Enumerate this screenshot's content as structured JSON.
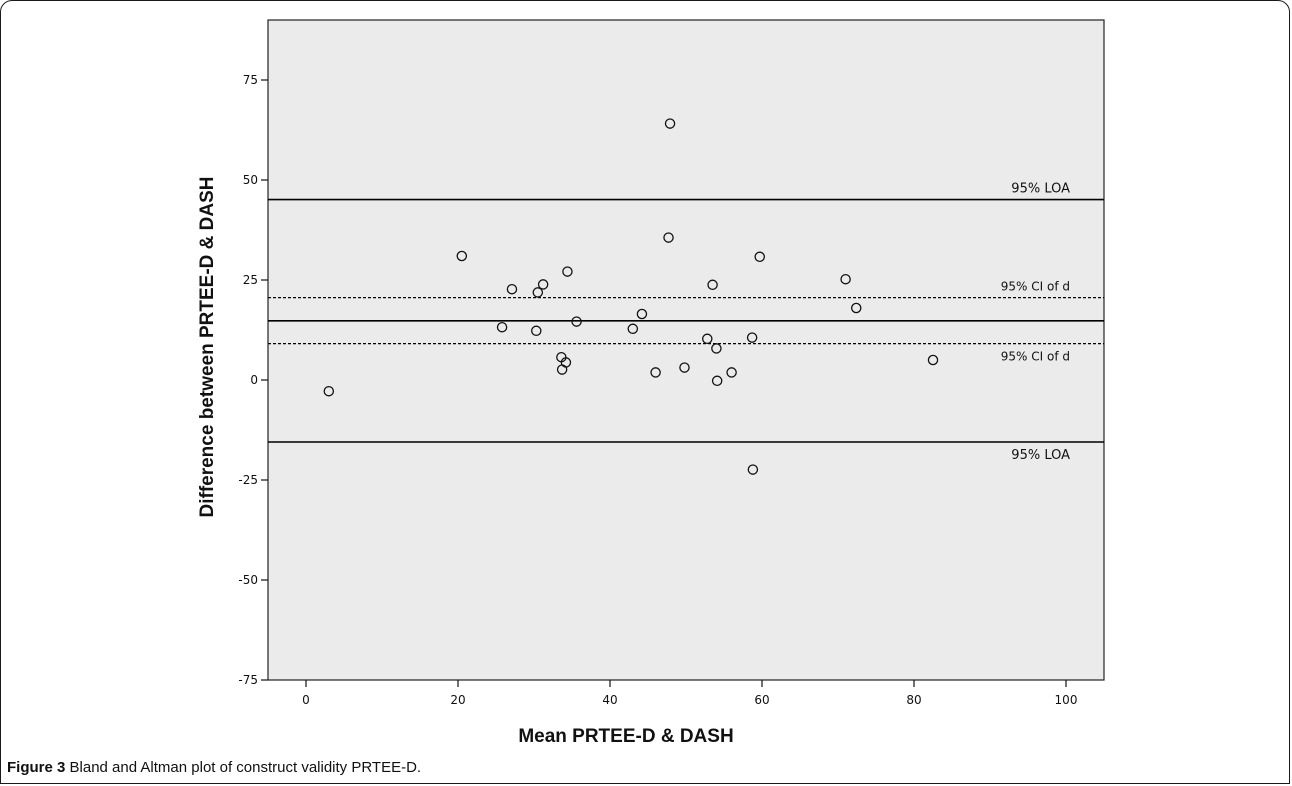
{
  "caption": {
    "label": "Figure 3",
    "text": " Bland and Altman plot of construct validity PRTEE-D."
  },
  "chart_data": {
    "type": "scatter",
    "xlabel": "Mean PRTEE-D & DASH",
    "ylabel": "Difference between PRTEE-D & DASH",
    "xlim": [
      -5,
      105
    ],
    "ylim": [
      -75,
      90
    ],
    "xticks": [
      0,
      20,
      40,
      60,
      80,
      100
    ],
    "yticks": [
      75,
      50,
      25,
      0,
      -25,
      -50,
      -75
    ],
    "grid": false,
    "marker": "open-circle",
    "plot_background": "#ebebeb",
    "points": [
      {
        "x": 3,
        "y": -2.8
      },
      {
        "x": 20.5,
        "y": 31
      },
      {
        "x": 25.8,
        "y": 13.2
      },
      {
        "x": 27.1,
        "y": 22.7
      },
      {
        "x": 30.3,
        "y": 12.3
      },
      {
        "x": 30.5,
        "y": 21.9
      },
      {
        "x": 31.2,
        "y": 23.9
      },
      {
        "x": 33.6,
        "y": 5.7
      },
      {
        "x": 33.7,
        "y": 2.6
      },
      {
        "x": 34.2,
        "y": 4.4
      },
      {
        "x": 34.4,
        "y": 27.1
      },
      {
        "x": 35.6,
        "y": 14.6
      },
      {
        "x": 43,
        "y": 12.8
      },
      {
        "x": 44.2,
        "y": 16.5
      },
      {
        "x": 46,
        "y": 1.9
      },
      {
        "x": 47.7,
        "y": 35.6
      },
      {
        "x": 47.9,
        "y": 64.1
      },
      {
        "x": 49.8,
        "y": 3.1
      },
      {
        "x": 52.8,
        "y": 10.3
      },
      {
        "x": 53.5,
        "y": 23.8
      },
      {
        "x": 54,
        "y": 7.9
      },
      {
        "x": 54.1,
        "y": -0.2
      },
      {
        "x": 56,
        "y": 1.9
      },
      {
        "x": 58.7,
        "y": 10.6
      },
      {
        "x": 58.8,
        "y": -22.4
      },
      {
        "x": 59.7,
        "y": 30.8
      },
      {
        "x": 71,
        "y": 25.2
      },
      {
        "x": 72.4,
        "y": 18
      },
      {
        "x": 82.5,
        "y": 5
      }
    ],
    "reference_lines": [
      {
        "y": 45.1,
        "style": "solid",
        "label": "95% LOA",
        "label_pos": "above"
      },
      {
        "y": 20.6,
        "style": "dashed",
        "label": "95% CI of d",
        "label_pos": "above"
      },
      {
        "y": 14.8,
        "style": "solid",
        "label": "",
        "label_pos": "none"
      },
      {
        "y": 9.1,
        "style": "dashed",
        "label": "95% CI of d",
        "label_pos": "below"
      },
      {
        "y": -15.5,
        "style": "solid",
        "label": "95% LOA",
        "label_pos": "below"
      }
    ]
  }
}
